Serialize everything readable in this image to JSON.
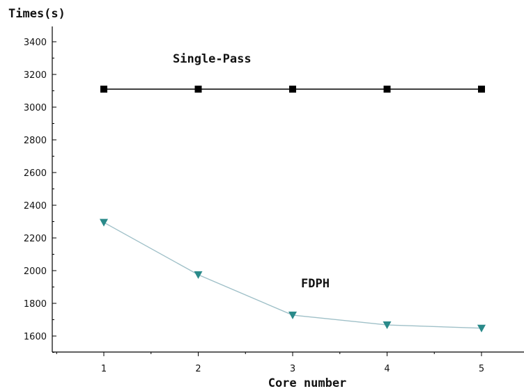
{
  "chart_data": {
    "type": "line",
    "title": "",
    "xlabel": "Core number",
    "ylabel": "Times(s)",
    "x": [
      1,
      2,
      3,
      4,
      5
    ],
    "xlim": [
      0.5,
      5.5
    ],
    "ylim": [
      1500,
      3480
    ],
    "yticks": [
      1600,
      1800,
      2000,
      2200,
      2400,
      2600,
      2800,
      3000,
      3200,
      3400
    ],
    "xticks": [
      1,
      2,
      3,
      4,
      5
    ],
    "grid": false,
    "series": [
      {
        "name": "Single-Pass",
        "values": [
          3110,
          3110,
          3110,
          3110,
          3110
        ],
        "marker": "square",
        "color": "#000000"
      },
      {
        "name": "FDPH",
        "values": [
          2295,
          1975,
          1728,
          1668,
          1648
        ],
        "marker": "triangle-down",
        "color": "#2a8a8a",
        "line_color": "#9fc0c8"
      }
    ]
  }
}
